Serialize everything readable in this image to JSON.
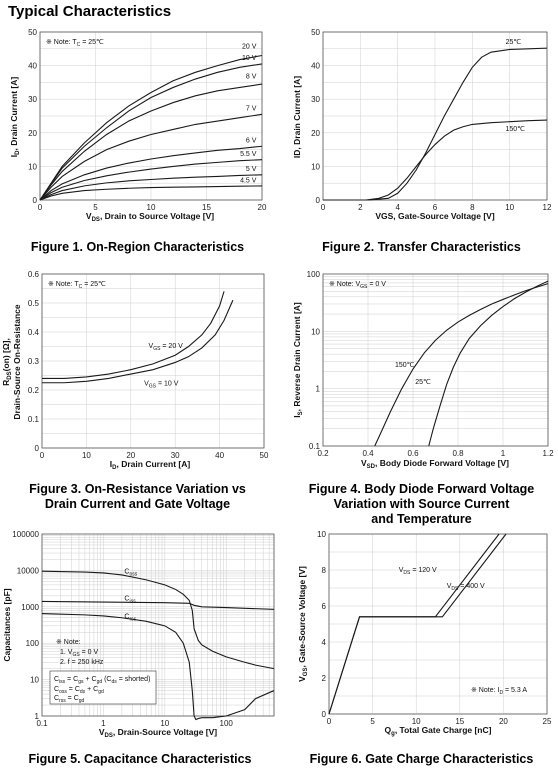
{
  "page": {
    "title": "Typical Characteristics"
  },
  "chart_data": [
    {
      "id": "fig1",
      "type": "line",
      "caption": "Figure 1. On-Region Characteristics",
      "note": "※ Note: T",
      "note_sub": "C",
      "note_tail": " = 25℃",
      "xlabel": "V",
      "xlabel_sub": "DS",
      "xlabel_tail": ", Drain to Source Voltage [V]",
      "ylabel": "I",
      "ylabel_sub": "D",
      "ylabel_tail": ", Drain Current [A]",
      "xlim": [
        0,
        20
      ],
      "ylim": [
        0,
        50
      ],
      "xticks": [
        0,
        5,
        10,
        15,
        20
      ],
      "yticks": [
        0,
        10,
        20,
        30,
        40,
        50
      ],
      "series": [
        {
          "name": "20 V",
          "x": [
            0,
            1,
            2,
            4,
            6,
            8,
            10,
            12,
            14,
            16,
            18,
            20
          ],
          "y": [
            0,
            5,
            10,
            17,
            23,
            28,
            32,
            35.5,
            38,
            40,
            41.8,
            43
          ]
        },
        {
          "name": "10 V",
          "x": [
            0,
            1,
            2,
            4,
            6,
            8,
            10,
            12,
            14,
            16,
            18,
            20
          ],
          "y": [
            0,
            4.8,
            9.5,
            16,
            21.5,
            26.5,
            30.5,
            33.5,
            36,
            38,
            39.5,
            40.5
          ]
        },
        {
          "name": "8 V",
          "x": [
            0,
            1,
            2,
            4,
            6,
            8,
            10,
            12,
            14,
            16,
            18,
            20
          ],
          "y": [
            0,
            4.5,
            8.5,
            14.5,
            19.5,
            23.5,
            26.5,
            29,
            31,
            32.5,
            33.5,
            34.5
          ]
        },
        {
          "name": "7 V",
          "x": [
            0,
            1,
            2,
            4,
            6,
            8,
            10,
            12,
            14,
            16,
            18,
            20
          ],
          "y": [
            0,
            3.8,
            7,
            11.5,
            15,
            17.5,
            19.5,
            21,
            22.5,
            23.5,
            24.5,
            25.5
          ]
        },
        {
          "name": "6 V",
          "x": [
            0,
            1,
            2,
            4,
            6,
            8,
            10,
            12,
            14,
            16,
            18,
            20
          ],
          "y": [
            0,
            2.8,
            4.8,
            7.5,
            9.5,
            11,
            12.2,
            13.2,
            14,
            14.8,
            15.3,
            16
          ]
        },
        {
          "name": "5.5 V",
          "x": [
            0,
            1,
            2,
            4,
            6,
            8,
            10,
            12,
            14,
            16,
            18,
            20
          ],
          "y": [
            0,
            2.2,
            3.8,
            5.8,
            7.2,
            8.3,
            9.2,
            10,
            10.7,
            11.2,
            11.7,
            12
          ]
        },
        {
          "name": "5 V",
          "x": [
            0,
            1,
            2,
            4,
            6,
            8,
            10,
            12,
            14,
            16,
            18,
            20
          ],
          "y": [
            0,
            1.6,
            2.8,
            4.2,
            5.1,
            5.7,
            6.1,
            6.5,
            6.8,
            7,
            7.3,
            7.5
          ]
        },
        {
          "name": "4.5 V",
          "x": [
            0,
            1,
            2,
            4,
            6,
            8,
            10,
            12,
            14,
            16,
            18,
            20
          ],
          "y": [
            0,
            1.2,
            2,
            2.8,
            3.2,
            3.5,
            3.7,
            3.8,
            3.9,
            4,
            4.1,
            4.2
          ]
        }
      ]
    },
    {
      "id": "fig2",
      "type": "line",
      "caption": "Figure 2. Transfer Characteristics",
      "xlabel": "VGS, Gate-Source Voltage [V]",
      "ylabel": "ID, Drain Current [A]",
      "xlim": [
        0,
        12
      ],
      "ylim": [
        0,
        50
      ],
      "xticks": [
        0,
        2,
        4,
        6,
        8,
        10,
        12
      ],
      "yticks": [
        0,
        10,
        20,
        30,
        40,
        50
      ],
      "series": [
        {
          "name": "25℃",
          "x": [
            0,
            2.5,
            3.5,
            4,
            4.5,
            5,
            5.5,
            6,
            6.5,
            7,
            7.5,
            8,
            8.5,
            9,
            10,
            11,
            12
          ],
          "y": [
            0,
            0,
            0.5,
            2,
            5,
            9,
            14,
            19.5,
            25,
            30,
            35,
            39.5,
            42.5,
            44,
            44.8,
            45,
            45.2
          ]
        },
        {
          "name": "150℃",
          "x": [
            0,
            2.3,
            3,
            3.5,
            4,
            4.5,
            5,
            5.5,
            6,
            6.5,
            7,
            7.5,
            8,
            9,
            10,
            11,
            12
          ],
          "y": [
            0,
            0,
            0.5,
            1.5,
            3.5,
            6.5,
            10,
            13.5,
            16.5,
            19,
            20.8,
            21.8,
            22.5,
            23,
            23.3,
            23.6,
            23.8
          ]
        }
      ]
    },
    {
      "id": "fig3",
      "type": "line",
      "caption_lines": [
        "Figure 3. On-Resistance Variation  vs",
        "Drain Current and Gate Voltage"
      ],
      "note": "※ Note: T",
      "note_sub": "C",
      "note_tail": " = 25℃",
      "xlabel": "I",
      "xlabel_sub": "D",
      "xlabel_tail": ", Drain Current [A]",
      "ylabel_line1_pre": "R",
      "ylabel_line1_sub": "DS",
      "ylabel_line1_tail": "(on) [Ω],",
      "ylabel_line2": "Drain-Source On-Resistance",
      "xlim": [
        0,
        50
      ],
      "ylim": [
        0,
        0.6
      ],
      "xticks": [
        0,
        10,
        20,
        30,
        40,
        50
      ],
      "yticks": [
        0,
        0.1,
        0.2,
        0.3,
        0.4,
        0.5,
        0.6
      ],
      "ytick_labels": [
        "0",
        "0.1",
        "0.2",
        "0.3",
        "0.4",
        "0.5",
        "0.6"
      ],
      "series": [
        {
          "name_pre": "V",
          "name_sub": "GS",
          "name_tail": " = 20 V",
          "x": [
            0,
            5,
            10,
            15,
            20,
            25,
            30,
            33,
            36,
            38,
            40,
            41
          ],
          "y": [
            0.24,
            0.24,
            0.245,
            0.255,
            0.27,
            0.29,
            0.32,
            0.35,
            0.39,
            0.43,
            0.49,
            0.54
          ]
        },
        {
          "name_pre": "V",
          "name_sub": "GS",
          "name_tail": " = 10 V",
          "x": [
            0,
            5,
            10,
            15,
            20,
            25,
            30,
            33,
            36,
            39,
            41,
            43
          ],
          "y": [
            0.225,
            0.225,
            0.23,
            0.24,
            0.255,
            0.27,
            0.295,
            0.315,
            0.345,
            0.39,
            0.44,
            0.51
          ]
        }
      ]
    },
    {
      "id": "fig4",
      "type": "line",
      "caption_lines": [
        "Figure 4. Body Diode Forward Voltage",
        "Variation with Source Current",
        "and Temperature"
      ],
      "note": "※ Note: V",
      "note_sub": "GS",
      "note_tail": " = 0 V",
      "xlabel": "V",
      "xlabel_sub": "SD",
      "xlabel_tail": ", Body Diode Forward Voltage [V]",
      "ylabel": "I",
      "ylabel_sub": "S",
      "ylabel_tail": ", Reverse Drain Current [A]",
      "xlim": [
        0.2,
        1.2
      ],
      "ylim": [
        0.1,
        100
      ],
      "yscale": "log",
      "xticks": [
        0.2,
        0.4,
        0.6,
        0.8,
        1,
        1.2
      ],
      "xtick_labels": [
        "0.2",
        "0.4",
        "0.6",
        "0.8",
        "1",
        "1.2"
      ],
      "yticks": [
        0.1,
        1,
        10,
        100
      ],
      "ytick_labels": [
        "0.1",
        "1",
        "10",
        "100"
      ],
      "series": [
        {
          "name": "150℃",
          "x": [
            0.43,
            0.46,
            0.5,
            0.55,
            0.6,
            0.65,
            0.7,
            0.75,
            0.8,
            0.85,
            0.9,
            0.95,
            1.0,
            1.05,
            1.1,
            1.15,
            1.2
          ],
          "y": [
            0.1,
            0.18,
            0.4,
            1.0,
            2.2,
            4.2,
            7.0,
            10.5,
            14.5,
            19,
            24,
            30,
            36,
            43,
            51,
            59,
            68
          ]
        },
        {
          "name": "25℃",
          "x": [
            0.67,
            0.69,
            0.72,
            0.75,
            0.78,
            0.81,
            0.85,
            0.9,
            0.95,
            1.0,
            1.05,
            1.1,
            1.15,
            1.2
          ],
          "y": [
            0.1,
            0.2,
            0.5,
            1.2,
            2.4,
            4.2,
            7.5,
            12.5,
            19,
            27,
            37,
            48,
            61,
            75
          ]
        }
      ]
    },
    {
      "id": "fig5",
      "type": "line",
      "caption": "Figure 5. Capacitance Characteristics",
      "xlabel": "V",
      "xlabel_sub": "DS",
      "xlabel_tail": ", Drain-Source Voltage [V]",
      "ylabel": "Capacitances [pF]",
      "xlim": [
        0.1,
        600
      ],
      "ylim": [
        1,
        100000
      ],
      "xscale": "log",
      "yscale": "log",
      "xticks": [
        0.1,
        1,
        10,
        100
      ],
      "xtick_labels": [
        "0.1",
        "1",
        "10",
        "100"
      ],
      "yticks": [
        1,
        10,
        100,
        1000,
        10000,
        100000
      ],
      "ytick_labels": [
        "1",
        "10",
        "100",
        "1000",
        "10000",
        "100000"
      ],
      "note_lines": [
        "※ Note:",
        "1. V",
        "2. f = 250 kHz"
      ],
      "note_vgs_sub": "GS",
      "note_vgs_tail": " = 0 V",
      "legend_box": [
        {
          "pre": "C",
          "sub": "iss",
          "tail": " = C",
          "sub2": "gs",
          "tail2": " + C",
          "sub3": "gd",
          "tail3": " (C",
          "sub4": "ds",
          "tail4": " = shorted)"
        },
        {
          "pre": "C",
          "sub": "oss",
          "tail": " = C",
          "sub2": "ds",
          "tail2": " + C",
          "sub3": "gd",
          "tail3": "",
          "sub4": "",
          "tail4": ""
        },
        {
          "pre": "C",
          "sub": "rss",
          "tail": " = C",
          "sub2": "gd",
          "tail2": "",
          "sub3": "",
          "tail3": "",
          "sub4": "",
          "tail4": ""
        }
      ],
      "series": [
        {
          "name_pre": "C",
          "name_sub": "oss",
          "x": [
            0.1,
            0.5,
            1,
            2,
            5,
            10,
            15,
            20,
            25,
            28,
            30,
            35,
            40,
            60,
            100,
            200,
            300,
            600
          ],
          "y": [
            9500,
            9000,
            8500,
            7500,
            5500,
            4000,
            3000,
            2200,
            1500,
            800,
            250,
            120,
            90,
            60,
            42,
            30,
            25,
            20
          ]
        },
        {
          "name_pre": "C",
          "name_sub": "iss",
          "x": [
            0.1,
            1,
            10,
            25,
            30,
            40,
            100,
            600
          ],
          "y": [
            1400,
            1350,
            1300,
            1250,
            1100,
            1000,
            950,
            850
          ]
        },
        {
          "name_pre": "C",
          "name_sub": "rss",
          "x": [
            0.1,
            0.5,
            1,
            2,
            5,
            10,
            15,
            20,
            25,
            28,
            30,
            32,
            35,
            40,
            60,
            100,
            200,
            300,
            600
          ],
          "y": [
            650,
            600,
            560,
            500,
            400,
            300,
            200,
            100,
            30,
            5,
            1,
            0.8,
            0.85,
            0.9,
            0.9,
            1.0,
            1.5,
            3,
            5
          ]
        }
      ]
    },
    {
      "id": "fig6",
      "type": "line",
      "caption": "Figure 6. Gate Charge Characteristics",
      "note": "※ Note: I",
      "note_sub": "D",
      "note_tail": " = 5.3 A",
      "xlabel": "Q",
      "xlabel_sub": "g",
      "xlabel_tail": ", Total Gate Charge [nC]",
      "ylabel": "V",
      "ylabel_sub": "GS",
      "ylabel_tail": ", Gate-Source Voltage [V]",
      "xlim": [
        0,
        25
      ],
      "ylim": [
        0,
        10
      ],
      "xticks": [
        0,
        5,
        10,
        15,
        20,
        25
      ],
      "yticks": [
        0,
        2,
        4,
        6,
        8,
        10
      ],
      "series": [
        {
          "name_pre": "V",
          "name_sub": "DS",
          "name_tail": " = 120 V",
          "x": [
            0,
            3.5,
            12.2,
            19.5
          ],
          "y": [
            0,
            5.4,
            5.4,
            10
          ]
        },
        {
          "name_pre": "V",
          "name_sub": "DS",
          "name_tail": " = 400 V",
          "x": [
            0,
            3.5,
            13.0,
            20.3
          ],
          "y": [
            0,
            5.4,
            5.4,
            10
          ]
        }
      ]
    }
  ]
}
